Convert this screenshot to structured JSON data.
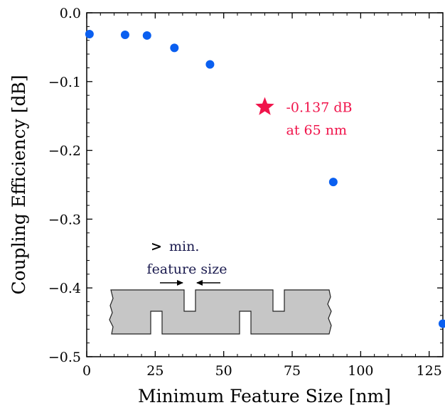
{
  "chart_data": {
    "type": "scatter",
    "xlabel": "Minimum Feature Size [nm]",
    "ylabel": "Coupling Efficiency [dB]",
    "xlim": [
      0,
      130
    ],
    "ylim": [
      -0.5,
      0.0
    ],
    "x_ticks": [
      0,
      25,
      50,
      75,
      100,
      125
    ],
    "y_ticks": [
      0.0,
      -0.1,
      -0.2,
      -0.3,
      -0.4,
      -0.5
    ],
    "x_tick_labels": [
      "0",
      "25",
      "50",
      "75",
      "100",
      "125"
    ],
    "y_tick_labels": [
      "0.0",
      "−0.1",
      "−0.2",
      "−0.3",
      "−0.4",
      "−0.5"
    ],
    "grid": false,
    "series": [
      {
        "color": "#0a5ff0",
        "marker": "circle",
        "points": [
          {
            "x": 1,
            "y": -0.031
          },
          {
            "x": 14,
            "y": -0.032
          },
          {
            "x": 22,
            "y": -0.033
          },
          {
            "x": 32,
            "y": -0.051
          },
          {
            "x": 45,
            "y": -0.075
          },
          {
            "x": 90,
            "y": -0.246
          },
          {
            "x": 130,
            "y": -0.452
          }
        ]
      }
    ],
    "highlight": {
      "x": 65,
      "y": -0.137,
      "marker": "star",
      "color": "#f0144b",
      "label_line1": "-0.137 dB",
      "label_line2": "at 65 nm"
    },
    "inset": {
      "label_symbol": ">",
      "label_line1": "min.",
      "label_line2": "feature size",
      "label_color": "#1a1a4e",
      "fill": "#c6c6c6"
    }
  }
}
